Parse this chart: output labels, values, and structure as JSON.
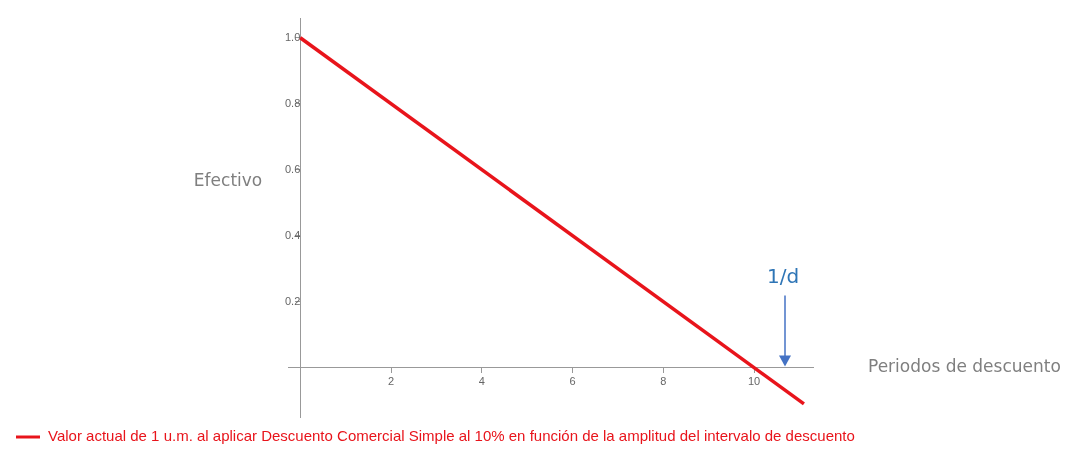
{
  "chart_data": {
    "type": "line",
    "xlabel": "Periodos de descuento",
    "ylabel": "Efectivo",
    "x": [
      0,
      11.1
    ],
    "series": [
      {
        "name": "Valor actual de 1 u.m. al aplicar Descuento Comercial Simple al 10% en función de la amplitud del intervalo de descuento",
        "color": "#e8141b",
        "values": [
          1,
          -0.11
        ]
      }
    ],
    "xlim": [
      -0.27,
      11.3
    ],
    "ylim": [
      -0.15,
      1.06
    ],
    "xticks": [
      2,
      4,
      6,
      8,
      10
    ],
    "yticks": [
      {
        "value": 0.2,
        "label": "0.2"
      },
      {
        "value": 0.4,
        "label": "0.4"
      },
      {
        "value": 0.6,
        "label": "0.6"
      },
      {
        "value": 0.8,
        "label": "0.8"
      },
      {
        "value": 1,
        "label": "1.0"
      }
    ],
    "grid": false,
    "legend": "bottom",
    "marker": "none",
    "line_style": "solid",
    "annotations": [
      "1/d"
    ]
  }
}
